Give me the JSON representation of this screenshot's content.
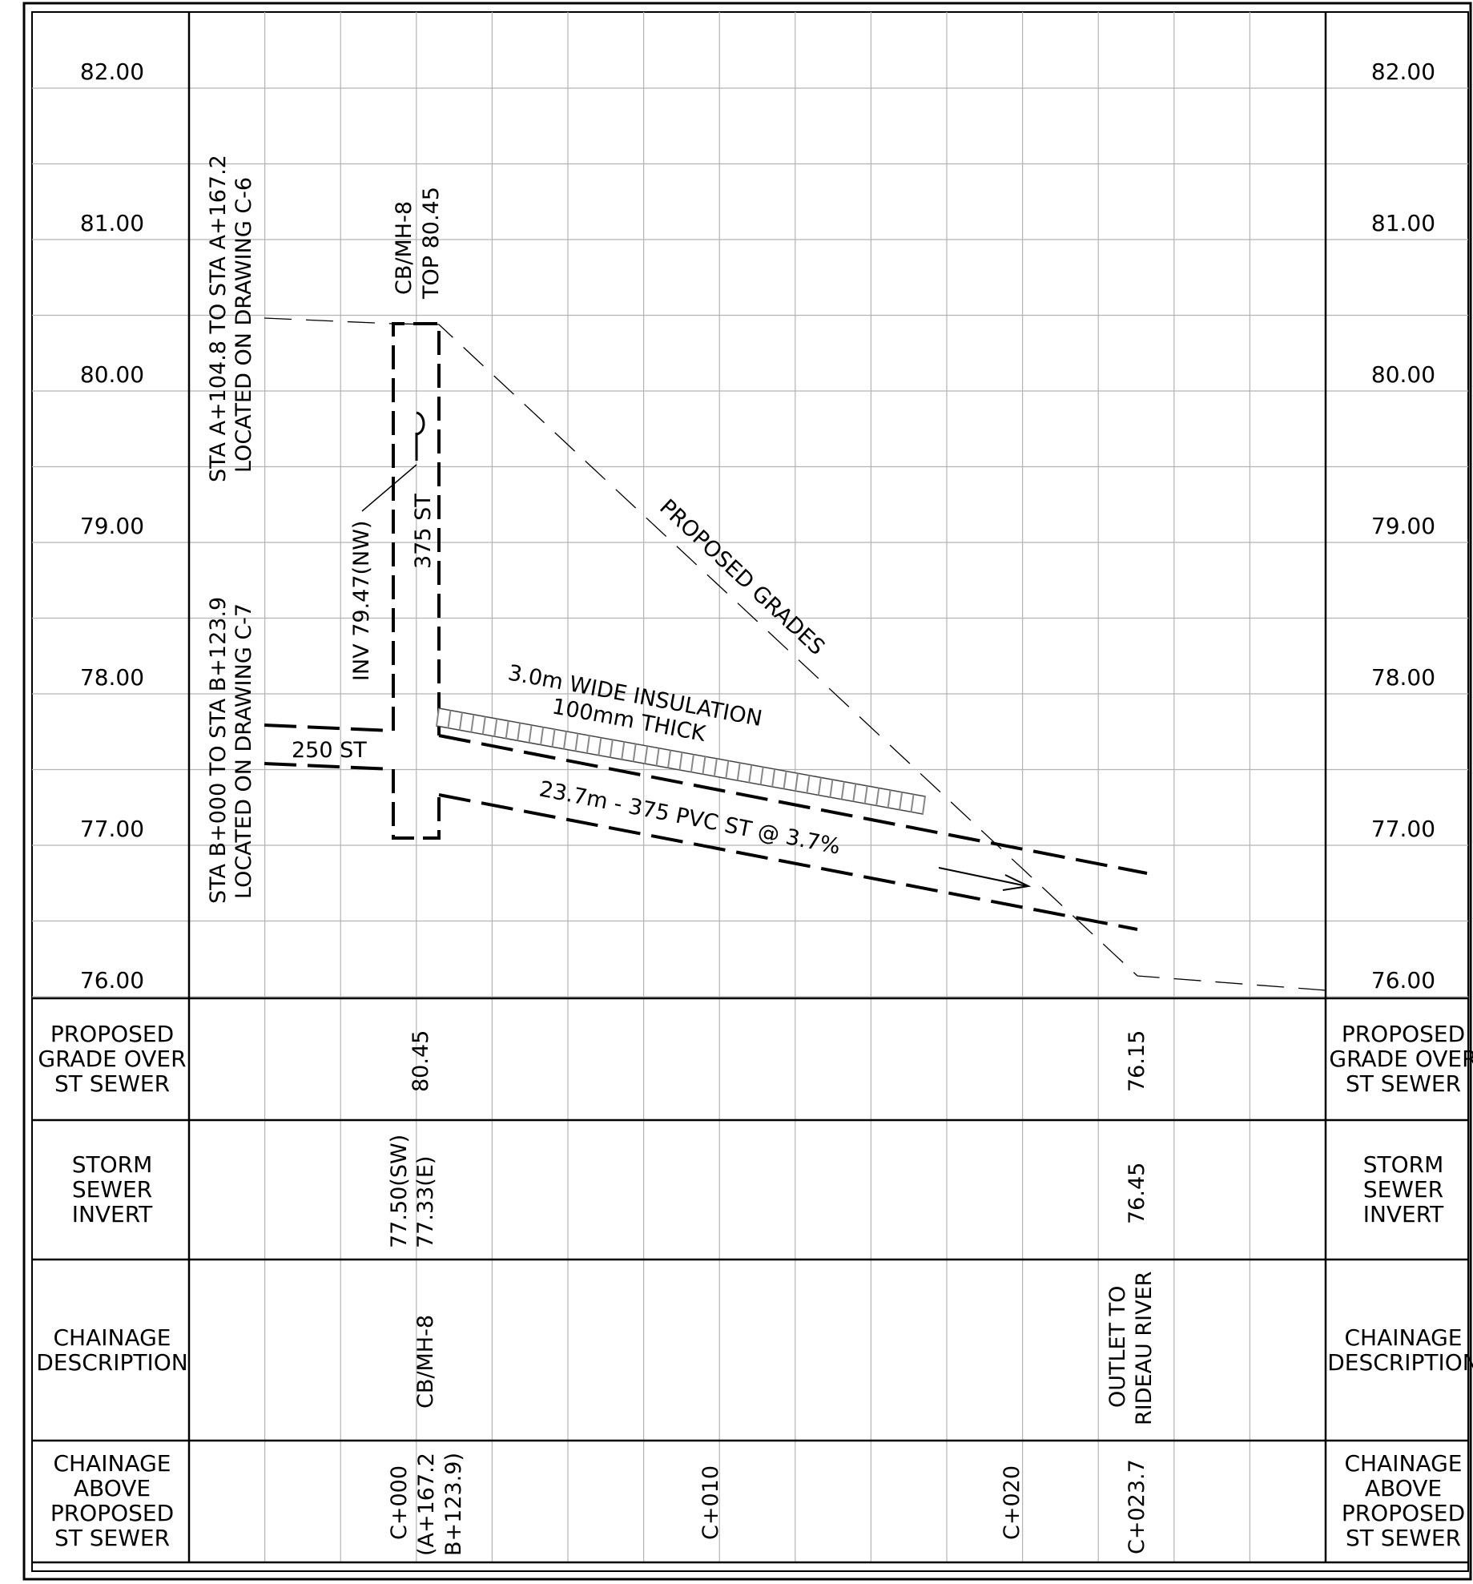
{
  "elevation_labels": [
    "82.00",
    "81.00",
    "80.00",
    "79.00",
    "78.00",
    "77.00",
    "76.00"
  ],
  "rows": {
    "proposed_grade": [
      "PROPOSED",
      "GRADE OVER",
      "ST SEWER"
    ],
    "storm_invert": [
      "STORM",
      "SEWER",
      "INVERT"
    ],
    "chainage_desc": [
      "CHAINAGE",
      "DESCRIPTION"
    ],
    "chainage_above": [
      "CHAINAGE",
      "ABOVE",
      "PROPOSED",
      "ST SEWER"
    ]
  },
  "notes": {
    "sta_a": [
      "STA A+104.8 TO STA A+167.2",
      "LOCATED ON DRAWING C-6"
    ],
    "sta_b": [
      "STA B+000 TO STA B+123.9",
      "LOCATED ON DRAWING C-7"
    ],
    "manhole": [
      "CB/MH-8",
      "TOP 80.45"
    ],
    "inv_nw": "INV 79.47(NW)",
    "riser": "375 ST",
    "lateral": "250 ST",
    "grades": "PROPOSED GRADES",
    "insulation": [
      "3.0m WIDE INSULATION",
      "100mm THICK"
    ],
    "pipe": "23.7m - 375 PVC ST @ 3.7%"
  },
  "table_values": {
    "grade_mh": "80.45",
    "grade_outlet": "76.15",
    "invert_mh": [
      "77.50(SW)",
      "77.33(E)"
    ],
    "invert_outlet": "76.45",
    "desc_mh": "CB/MH-8",
    "desc_outlet": [
      "OUTLET TO",
      "RIDEAU RIVER"
    ],
    "ch_000": [
      "C+000",
      "(A+167.2",
      "B+123.9)"
    ],
    "ch_010": "C+010",
    "ch_020": "C+020",
    "ch_outlet": "C+023.7"
  },
  "chart_data": {
    "type": "diagram",
    "y_axis_elevation_range": [
      76.0,
      82.0
    ],
    "proposed_grade_profile": [
      {
        "chainage": -5.0,
        "elevation": 80.45
      },
      {
        "chainage": 0.0,
        "elevation": 80.45
      },
      {
        "chainage": 23.7,
        "elevation": 76.15
      },
      {
        "chainage": 31.0,
        "elevation": 76.05
      }
    ],
    "storm_sewer": {
      "length_m": 23.7,
      "diameter_mm": 375,
      "material": "PVC",
      "slope_percent": 3.7,
      "invert_start": 77.33,
      "invert_end": 76.45
    },
    "manhole": {
      "name": "CB/MH-8",
      "top": 80.45,
      "inverts": [
        "79.47(NW)",
        "77.50(SW)",
        "77.33(E)"
      ]
    },
    "outlet": {
      "name": "OUTLET TO RIDEAU RIVER",
      "chainage": "C+023.7",
      "invert": 76.45,
      "grade": 76.15
    }
  }
}
